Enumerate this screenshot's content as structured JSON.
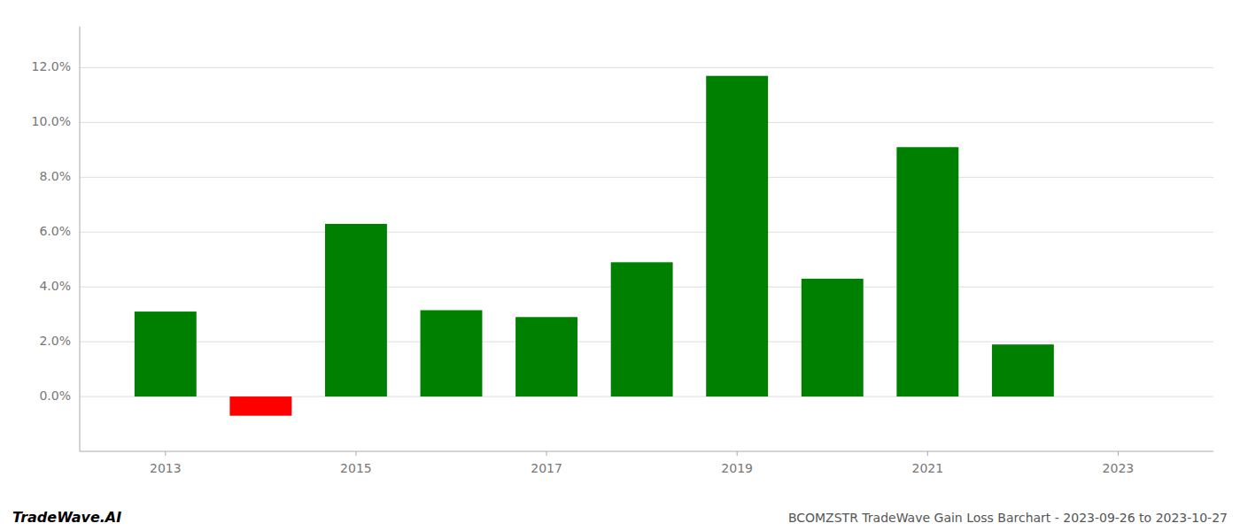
{
  "chart_data": {
    "type": "bar",
    "x": [
      2013,
      2014,
      2015,
      2016,
      2017,
      2018,
      2019,
      2020,
      2021,
      2022
    ],
    "values": [
      0.031,
      -0.007,
      0.063,
      0.0315,
      0.029,
      0.049,
      0.117,
      0.043,
      0.091,
      0.019
    ],
    "colors": [
      "#008000",
      "#ff0000",
      "#008000",
      "#008000",
      "#008000",
      "#008000",
      "#008000",
      "#008000",
      "#008000",
      "#008000"
    ],
    "xlim": [
      2012.1,
      2024.0
    ],
    "xticks": [
      2013,
      2015,
      2017,
      2019,
      2021,
      2023
    ],
    "ylim": [
      -0.02,
      0.135
    ],
    "yticks": [
      {
        "value": 0.0,
        "label": "0.0%"
      },
      {
        "value": 0.02,
        "label": "2.0%"
      },
      {
        "value": 0.04,
        "label": "4.0%"
      },
      {
        "value": 0.06,
        "label": "6.0%"
      },
      {
        "value": 0.08,
        "label": "8.0%"
      },
      {
        "value": 0.1,
        "label": "10.0%"
      },
      {
        "value": 0.12,
        "label": "12.0%"
      }
    ],
    "grid": true,
    "annotations": [
      "TradeWave.AI",
      "BCOMZSTR TradeWave Gain Loss Barchart - 2023-09-26 to 2023-10-27"
    ]
  }
}
